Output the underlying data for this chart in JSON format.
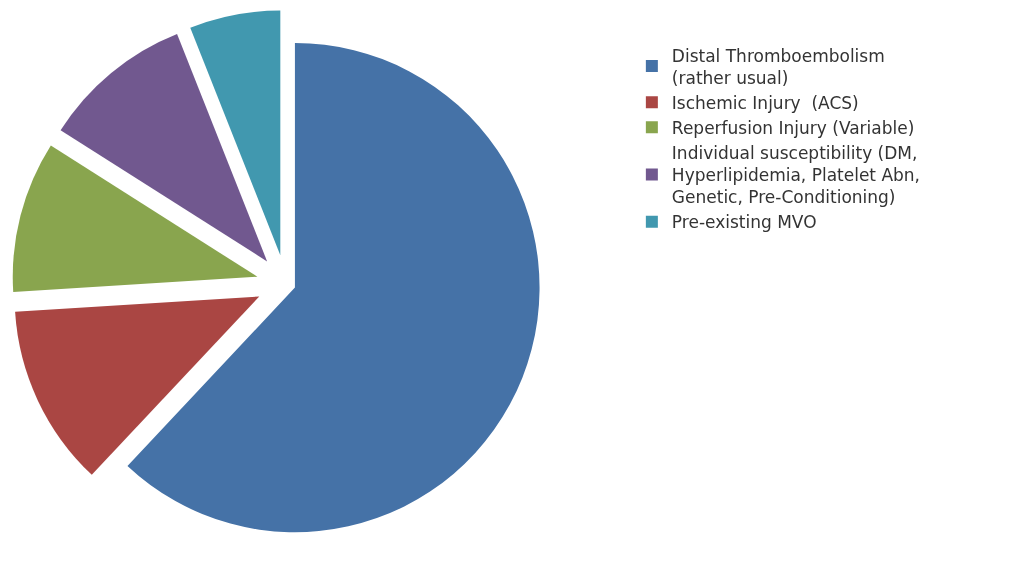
{
  "chart_data": {
    "type": "pie",
    "categories": [
      "Distal Thromboembolism\n(rather usual)",
      "Ischemic Injury  (ACS)",
      "Reperfusion Injury (Variable)",
      "Individual susceptibility (DM,\nHyperlipidemia, Platelet Abn,\nGenetic, Pre-Conditioning)",
      "Pre-existing MVO"
    ],
    "values": [
      62,
      12,
      10,
      10,
      6
    ],
    "colors": [
      "#4572a7",
      "#aa4643",
      "#89a54e",
      "#71588f",
      "#4198af"
    ],
    "legend": "right"
  }
}
